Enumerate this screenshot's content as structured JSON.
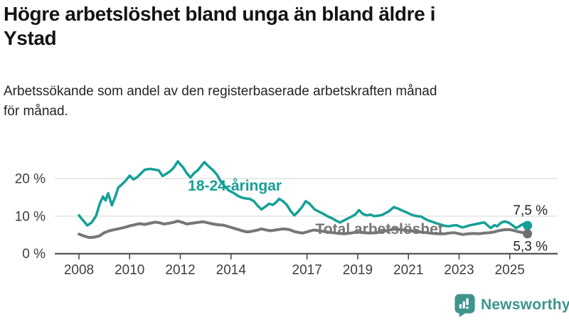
{
  "header": {
    "title": "Högre arbetslöshet bland unga än bland äldre i\nYstad",
    "subtitle": "Arbetssökande som andel av den registerbaserade arbetskraften månad\nför månad."
  },
  "footer": {
    "brand": "Newsworthy",
    "logo_icon": "speech-bubble-bar-chart-exclamation"
  },
  "colors": {
    "youth_line": "#14A096",
    "total_line": "#767676",
    "total_dot": "#6E6E6E",
    "grid": "#e1e1e1",
    "axis": "#3f3f3f",
    "tick_label": "#3d3d3d",
    "end_label": "#222222",
    "brand": "#3E948B"
  },
  "chart_data": {
    "type": "line",
    "title": "Högre arbetslöshet bland unga än bland äldre i Ystad",
    "subtitle": "Arbetssökande som andel av den registerbaserade arbetskraften månad för månad.",
    "grid": "horizontal-only",
    "x_axis": {
      "range_years": [
        2007.05,
        2026.9
      ],
      "ticks": [
        {
          "value": 2008,
          "label": "2008"
        },
        {
          "value": 2010,
          "label": "2010"
        },
        {
          "value": 2012,
          "label": "2012"
        },
        {
          "value": 2014,
          "label": "2014"
        },
        {
          "value": 2017,
          "label": "2017"
        },
        {
          "value": 2019,
          "label": "2019"
        },
        {
          "value": 2021,
          "label": "2021"
        },
        {
          "value": 2023,
          "label": "2023"
        },
        {
          "value": 2025,
          "label": "2025"
        }
      ]
    },
    "y_axis": {
      "unit": "%",
      "range": [
        0,
        26.5
      ],
      "ticks": [
        {
          "value": 0,
          "label": "0 %"
        },
        {
          "value": 10,
          "label": "10 %"
        },
        {
          "value": 20,
          "label": "20 %"
        }
      ]
    },
    "legend_position": "inline-labels-on-lines",
    "series": [
      {
        "name": "18-24-åringar",
        "color": "#14A096",
        "dot_color": "#14A096",
        "label": "18-24-åringar",
        "label_at": [
          2014.15,
          18.1
        ],
        "end_label": "7,5 %",
        "end_value": 7.5,
        "points": [
          [
            2008.0,
            10.2
          ],
          [
            2008.17,
            8.8
          ],
          [
            2008.33,
            7.5
          ],
          [
            2008.5,
            8.3
          ],
          [
            2008.67,
            10.0
          ],
          [
            2008.83,
            13.5
          ],
          [
            2008.95,
            15.2
          ],
          [
            2009.05,
            14.2
          ],
          [
            2009.15,
            16.1
          ],
          [
            2009.3,
            12.9
          ],
          [
            2009.45,
            15.5
          ],
          [
            2009.55,
            17.6
          ],
          [
            2009.7,
            18.5
          ],
          [
            2009.85,
            19.5
          ],
          [
            2010.0,
            20.8
          ],
          [
            2010.15,
            19.8
          ],
          [
            2010.3,
            20.4
          ],
          [
            2010.45,
            21.4
          ],
          [
            2010.6,
            22.4
          ],
          [
            2010.8,
            22.6
          ],
          [
            2011.0,
            22.4
          ],
          [
            2011.15,
            22.2
          ],
          [
            2011.3,
            20.7
          ],
          [
            2011.45,
            21.3
          ],
          [
            2011.6,
            22.0
          ],
          [
            2011.75,
            23.0
          ],
          [
            2011.9,
            24.6
          ],
          [
            2012.0,
            23.8
          ],
          [
            2012.1,
            23.1
          ],
          [
            2012.25,
            21.5
          ],
          [
            2012.4,
            20.3
          ],
          [
            2012.55,
            21.5
          ],
          [
            2012.7,
            22.3
          ],
          [
            2012.85,
            23.6
          ],
          [
            2012.95,
            24.4
          ],
          [
            2013.1,
            23.4
          ],
          [
            2013.3,
            22.2
          ],
          [
            2013.45,
            21.0
          ],
          [
            2013.6,
            19.2
          ],
          [
            2013.75,
            18.0
          ],
          [
            2013.9,
            16.9
          ],
          [
            2014.1,
            16.2
          ],
          [
            2014.3,
            15.3
          ],
          [
            2014.45,
            14.9
          ],
          [
            2014.6,
            14.7
          ],
          [
            2014.75,
            14.6
          ],
          [
            2014.9,
            14.0
          ],
          [
            2015.05,
            12.8
          ],
          [
            2015.2,
            11.8
          ],
          [
            2015.35,
            12.5
          ],
          [
            2015.5,
            13.3
          ],
          [
            2015.65,
            13.0
          ],
          [
            2015.8,
            13.8
          ],
          [
            2015.9,
            14.6
          ],
          [
            2016.05,
            14.0
          ],
          [
            2016.2,
            13.0
          ],
          [
            2016.35,
            11.4
          ],
          [
            2016.5,
            10.2
          ],
          [
            2016.65,
            11.2
          ],
          [
            2016.8,
            12.4
          ],
          [
            2016.95,
            14.0
          ],
          [
            2017.1,
            13.3
          ],
          [
            2017.3,
            11.8
          ],
          [
            2017.5,
            11.1
          ],
          [
            2017.65,
            10.6
          ],
          [
            2017.8,
            10.0
          ],
          [
            2018.0,
            9.4
          ],
          [
            2018.15,
            8.8
          ],
          [
            2018.3,
            8.3
          ],
          [
            2018.5,
            9.0
          ],
          [
            2018.65,
            9.5
          ],
          [
            2018.9,
            10.4
          ],
          [
            2019.05,
            11.6
          ],
          [
            2019.2,
            10.6
          ],
          [
            2019.35,
            10.2
          ],
          [
            2019.5,
            10.4
          ],
          [
            2019.65,
            10.0
          ],
          [
            2019.8,
            10.1
          ],
          [
            2019.95,
            10.3
          ],
          [
            2020.1,
            10.8
          ],
          [
            2020.25,
            11.4
          ],
          [
            2020.42,
            12.4
          ],
          [
            2020.6,
            12.0
          ],
          [
            2020.75,
            11.5
          ],
          [
            2020.9,
            11.1
          ],
          [
            2021.05,
            10.6
          ],
          [
            2021.2,
            10.2
          ],
          [
            2021.35,
            10.0
          ],
          [
            2021.5,
            9.9
          ],
          [
            2021.65,
            9.3
          ],
          [
            2021.8,
            8.8
          ],
          [
            2021.95,
            8.5
          ],
          [
            2022.1,
            8.1
          ],
          [
            2022.3,
            7.7
          ],
          [
            2022.45,
            7.4
          ],
          [
            2022.6,
            7.3
          ],
          [
            2022.75,
            7.5
          ],
          [
            2022.9,
            7.6
          ],
          [
            2023.0,
            7.3
          ],
          [
            2023.15,
            7.0
          ],
          [
            2023.3,
            7.3
          ],
          [
            2023.45,
            7.6
          ],
          [
            2023.6,
            7.8
          ],
          [
            2023.75,
            8.0
          ],
          [
            2023.9,
            8.2
          ],
          [
            2024.0,
            8.3
          ],
          [
            2024.1,
            7.7
          ],
          [
            2024.25,
            6.8
          ],
          [
            2024.4,
            7.6
          ],
          [
            2024.5,
            7.3
          ],
          [
            2024.65,
            8.2
          ],
          [
            2024.8,
            8.6
          ],
          [
            2024.95,
            8.3
          ],
          [
            2025.1,
            7.6
          ],
          [
            2025.25,
            6.8
          ],
          [
            2025.4,
            7.4
          ],
          [
            2025.55,
            8.0
          ],
          [
            2025.7,
            7.5
          ]
        ]
      },
      {
        "name": "Total arbetslöshet",
        "color": "#767676",
        "dot_color": "#6E6E6E",
        "label": "Total arbetslöshet",
        "label_at": [
          2019.85,
          6.55
        ],
        "end_label": "5,3 %",
        "end_value": 5.3,
        "points": [
          [
            2008.0,
            5.2
          ],
          [
            2008.2,
            4.7
          ],
          [
            2008.4,
            4.3
          ],
          [
            2008.6,
            4.4
          ],
          [
            2008.8,
            4.7
          ],
          [
            2009.0,
            5.6
          ],
          [
            2009.2,
            6.1
          ],
          [
            2009.4,
            6.4
          ],
          [
            2009.6,
            6.7
          ],
          [
            2009.8,
            7.0
          ],
          [
            2010.0,
            7.4
          ],
          [
            2010.2,
            7.7
          ],
          [
            2010.4,
            8.0
          ],
          [
            2010.6,
            7.8
          ],
          [
            2010.8,
            8.1
          ],
          [
            2011.0,
            8.4
          ],
          [
            2011.2,
            8.2
          ],
          [
            2011.35,
            7.9
          ],
          [
            2011.55,
            8.1
          ],
          [
            2011.75,
            8.4
          ],
          [
            2011.9,
            8.7
          ],
          [
            2012.1,
            8.3
          ],
          [
            2012.25,
            7.9
          ],
          [
            2012.45,
            8.1
          ],
          [
            2012.65,
            8.3
          ],
          [
            2012.9,
            8.5
          ],
          [
            2013.1,
            8.2
          ],
          [
            2013.3,
            7.9
          ],
          [
            2013.5,
            7.7
          ],
          [
            2013.7,
            7.6
          ],
          [
            2013.9,
            7.2
          ],
          [
            2014.1,
            6.8
          ],
          [
            2014.3,
            6.4
          ],
          [
            2014.5,
            6.0
          ],
          [
            2014.65,
            5.8
          ],
          [
            2014.85,
            6.0
          ],
          [
            2015.05,
            6.3
          ],
          [
            2015.2,
            6.6
          ],
          [
            2015.4,
            6.3
          ],
          [
            2015.55,
            6.1
          ],
          [
            2015.75,
            6.3
          ],
          [
            2015.95,
            6.5
          ],
          [
            2016.1,
            6.6
          ],
          [
            2016.3,
            6.4
          ],
          [
            2016.5,
            5.9
          ],
          [
            2016.7,
            5.6
          ],
          [
            2016.85,
            5.5
          ],
          [
            2017.05,
            5.9
          ],
          [
            2017.25,
            6.3
          ],
          [
            2017.4,
            6.2
          ],
          [
            2017.6,
            6.0
          ],
          [
            2017.8,
            5.8
          ],
          [
            2018.0,
            5.6
          ],
          [
            2018.25,
            5.4
          ],
          [
            2018.5,
            5.3
          ],
          [
            2018.75,
            5.5
          ],
          [
            2019.0,
            5.8
          ],
          [
            2019.25,
            5.6
          ],
          [
            2019.5,
            5.5
          ],
          [
            2019.75,
            5.6
          ],
          [
            2020.0,
            5.9
          ],
          [
            2020.25,
            6.3
          ],
          [
            2020.45,
            6.6
          ],
          [
            2020.7,
            6.4
          ],
          [
            2020.95,
            6.2
          ],
          [
            2021.2,
            6.0
          ],
          [
            2021.45,
            5.8
          ],
          [
            2021.7,
            5.6
          ],
          [
            2021.95,
            5.4
          ],
          [
            2022.2,
            5.3
          ],
          [
            2022.45,
            5.3
          ],
          [
            2022.6,
            5.5
          ],
          [
            2022.8,
            5.6
          ],
          [
            2023.0,
            5.3
          ],
          [
            2023.15,
            5.1
          ],
          [
            2023.35,
            5.3
          ],
          [
            2023.6,
            5.4
          ],
          [
            2023.8,
            5.3
          ],
          [
            2024.0,
            5.5
          ],
          [
            2024.2,
            5.6
          ],
          [
            2024.4,
            5.8
          ],
          [
            2024.55,
            6.1
          ],
          [
            2024.7,
            6.3
          ],
          [
            2024.85,
            6.4
          ],
          [
            2025.0,
            6.4
          ],
          [
            2025.15,
            6.2
          ],
          [
            2025.3,
            5.9
          ],
          [
            2025.45,
            5.7
          ],
          [
            2025.6,
            5.5
          ],
          [
            2025.7,
            5.3
          ]
        ]
      }
    ]
  }
}
